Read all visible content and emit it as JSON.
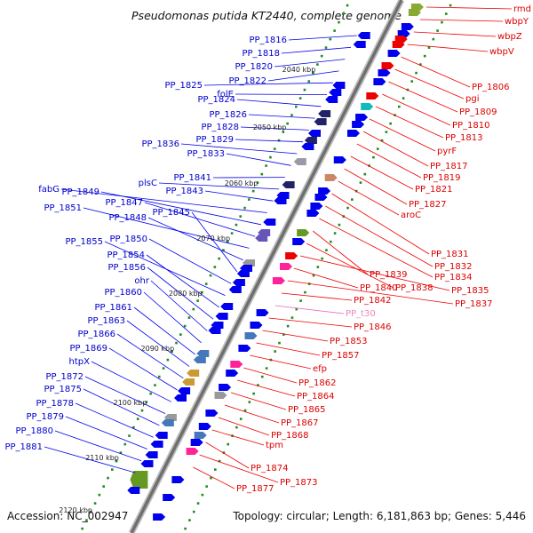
{
  "title": "Pseudomonas putida KT2440, complete genome",
  "accession": "Accession: NC_002947",
  "topology": "Topology: circular; Length: 6,181,863 bp; Genes: 5,446",
  "colors": {
    "minus": "#0000ee",
    "plus": "#ee0000",
    "trna": "#ee66bb",
    "backbone": "#777777",
    "tick": "#1e8c1e"
  },
  "kbp_marks": [
    {
      "label": "2040 kbp",
      "kbp": 2040
    },
    {
      "label": "2050 kbp",
      "kbp": 2050
    },
    {
      "label": "2060 kbp",
      "kbp": 2060
    },
    {
      "label": "2070 kbp",
      "kbp": 2070
    },
    {
      "label": "2080 kbp",
      "kbp": 2080
    },
    {
      "label": "2090 kbp",
      "kbp": 2090
    },
    {
      "label": "2100 kbp",
      "kbp": 2100
    },
    {
      "label": "2110 kbp",
      "kbp": 2110
    },
    {
      "label": "2120 kbp",
      "kbp": 2120
    }
  ],
  "left_genes": [
    "PP_1816",
    "PP_1818",
    "PP_1820",
    "PP_1822",
    "PP_1825",
    "folE",
    "PP_1824",
    "PP_1826",
    "PP_1828",
    "PP_1829",
    "PP_1836",
    "PP_1833",
    "PP_1841",
    "plsC",
    "PP_1843",
    "fabG",
    "PP_1849",
    "PP_1847",
    "PP_1851",
    "PP_1848",
    "PP_1845",
    "PP_1850",
    "PP_1855",
    "PP_1854",
    "PP_1856",
    "ohr",
    "PP_1860",
    "PP_1861",
    "PP_1863",
    "PP_1866",
    "PP_1869",
    "htpX",
    "PP_1872",
    "PP_1875",
    "PP_1878",
    "PP_1879",
    "PP_1880",
    "PP_1881"
  ],
  "right_genes": [
    "rmd",
    "wbpY",
    "wbpZ",
    "wbpV",
    "PP_1806",
    "pgi",
    "PP_1809",
    "PP_1810",
    "PP_1813",
    "pyrF",
    "PP_1817",
    "PP_1819",
    "PP_1821",
    "PP_1827",
    "aroC",
    "PP_1831",
    "PP_1832",
    "PP_1834",
    "PP_1839",
    "PP_1838",
    "PP_1835",
    "PP_1840",
    "PP_1837",
    "PP_1842",
    "PP_t30",
    "PP_1846",
    "PP_1853",
    "PP_1857",
    "efp",
    "PP_1862",
    "PP_1864",
    "PP_1865",
    "PP_1867",
    "PP_1868",
    "tpm",
    "PP_1874",
    "PP_1873",
    "PP_1877"
  ]
}
